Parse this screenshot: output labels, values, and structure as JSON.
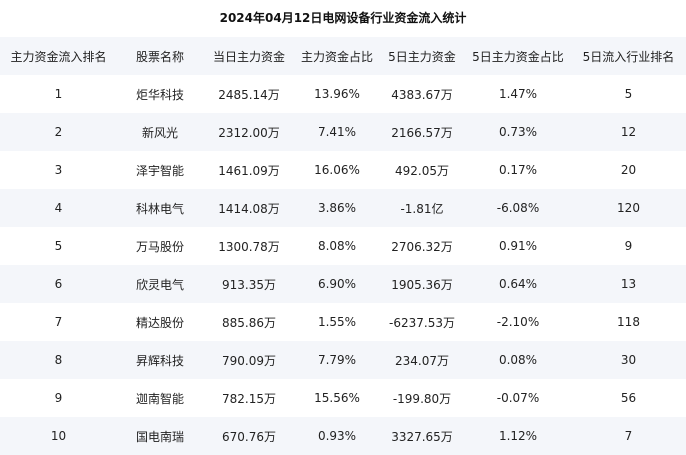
{
  "title": "2024年04月12日电网设备行业资金流入统计",
  "columns": [
    "主力资金流入排名",
    "股票名称",
    "当日主力资金",
    "主力资金占比",
    "5日主力资金",
    "5日主力资金占比",
    "5日流入行业排名"
  ],
  "rows": [
    [
      "1",
      "炬华科技",
      "2485.14万",
      "13.96%",
      "4383.67万",
      "1.47%",
      "5"
    ],
    [
      "2",
      "新风光",
      "2312.00万",
      "7.41%",
      "2166.57万",
      "0.73%",
      "12"
    ],
    [
      "3",
      "泽宇智能",
      "1461.09万",
      "16.06%",
      "492.05万",
      "0.17%",
      "20"
    ],
    [
      "4",
      "科林电气",
      "1414.08万",
      "3.86%",
      "-1.81亿",
      "-6.08%",
      "120"
    ],
    [
      "5",
      "万马股份",
      "1300.78万",
      "8.08%",
      "2706.32万",
      "0.91%",
      "9"
    ],
    [
      "6",
      "欣灵电气",
      "913.35万",
      "6.90%",
      "1905.36万",
      "0.64%",
      "13"
    ],
    [
      "7",
      "精达股份",
      "885.86万",
      "1.55%",
      "-6237.53万",
      "-2.10%",
      "118"
    ],
    [
      "8",
      "昇辉科技",
      "790.09万",
      "7.79%",
      "234.07万",
      "0.08%",
      "30"
    ],
    [
      "9",
      "迦南智能",
      "782.15万",
      "15.56%",
      "-199.80万",
      "-0.07%",
      "56"
    ],
    [
      "10",
      "国电南瑞",
      "670.76万",
      "0.93%",
      "3327.65万",
      "1.12%",
      "7"
    ]
  ]
}
